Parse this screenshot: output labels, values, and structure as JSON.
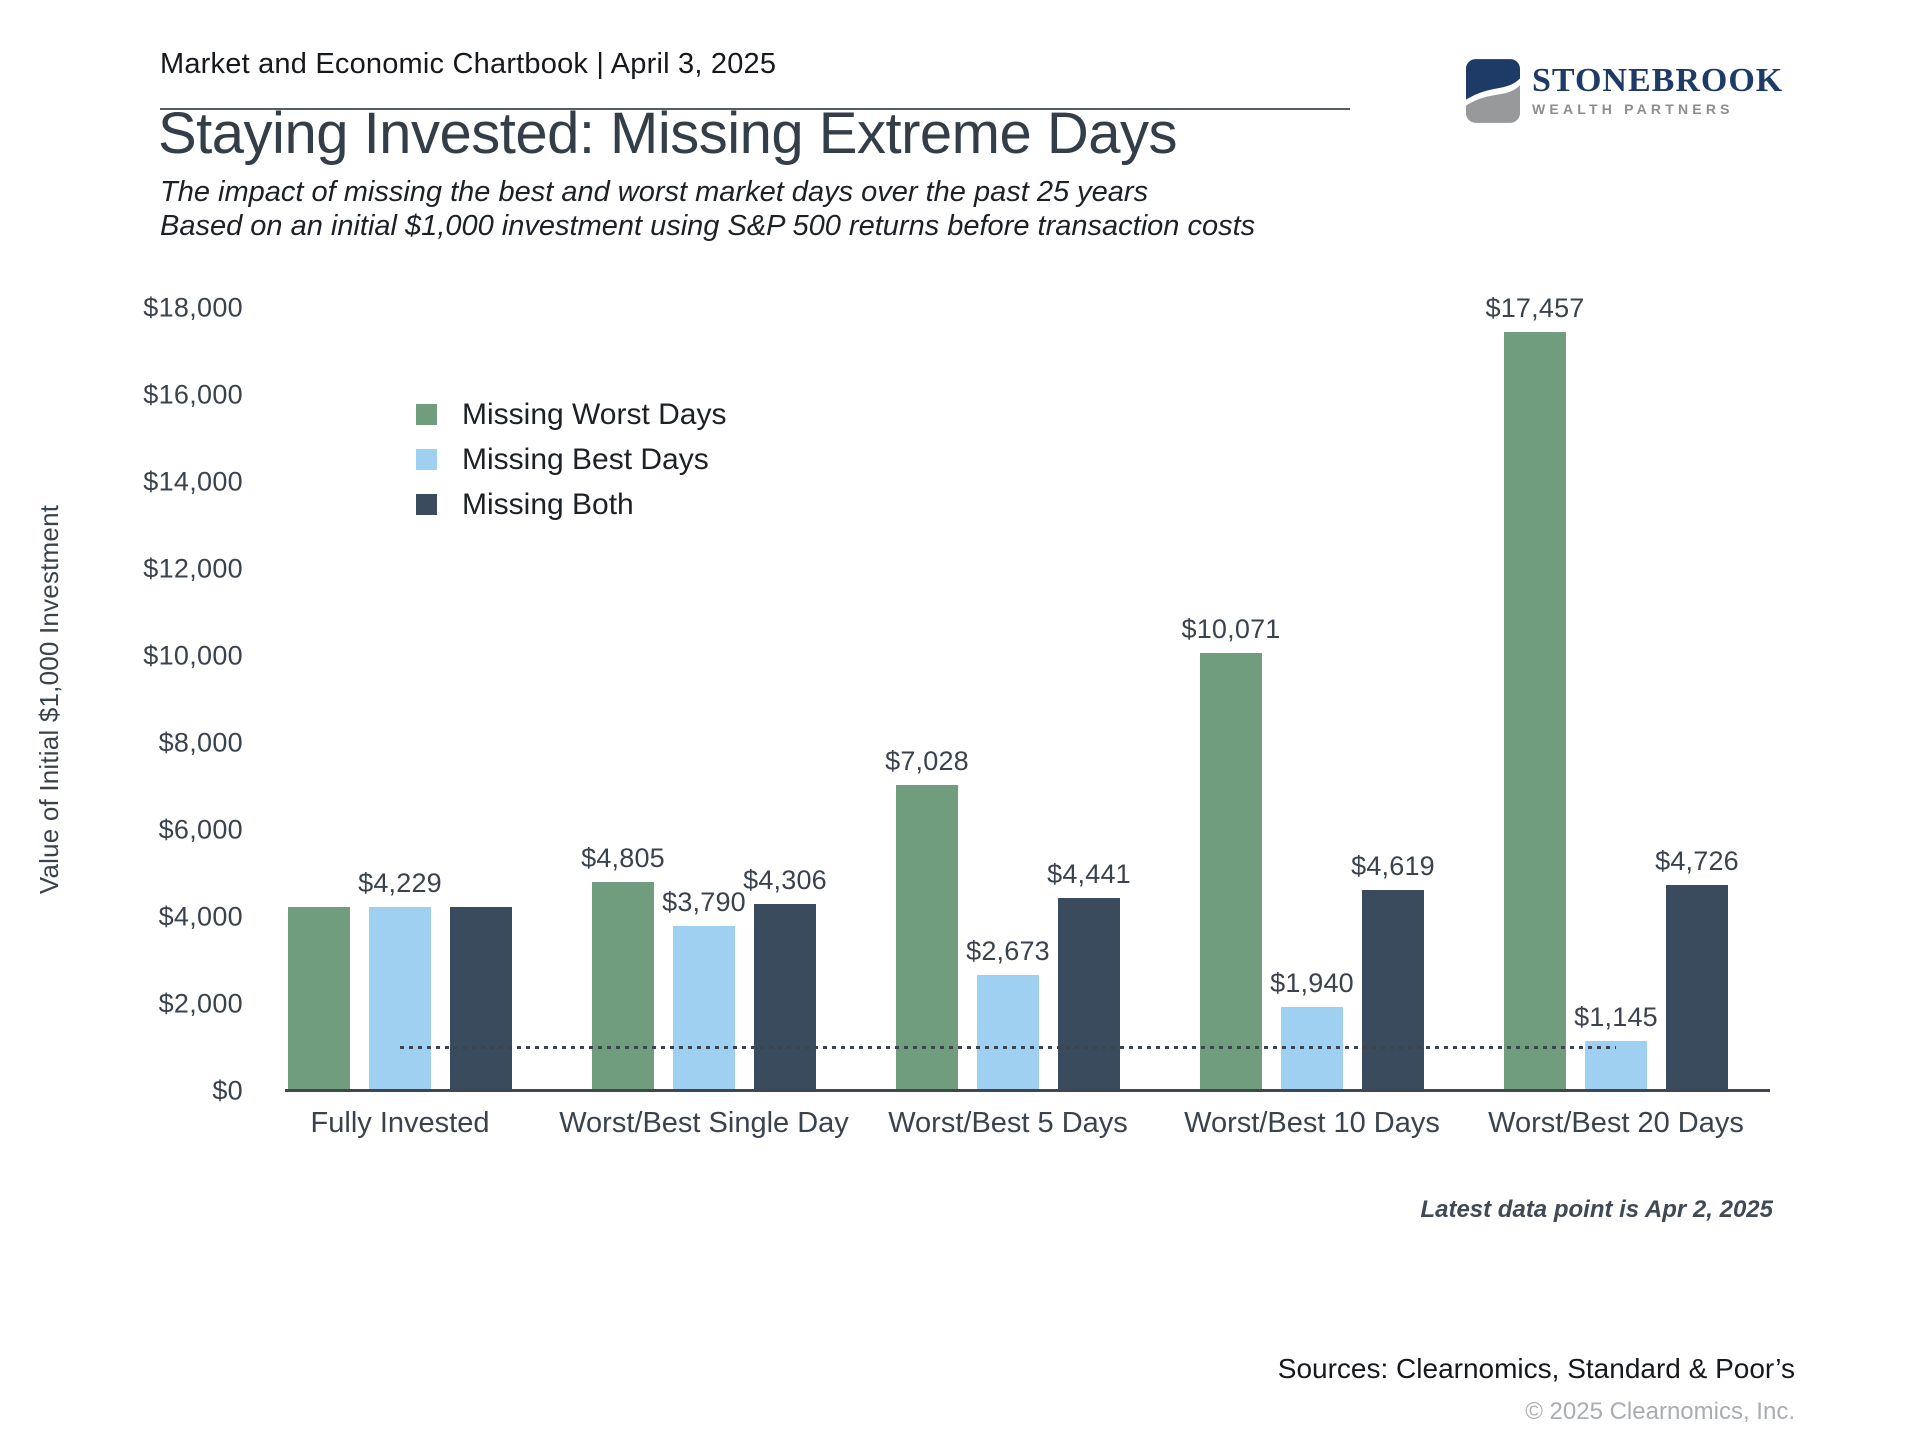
{
  "header": {
    "chartbook_title": "Market and Economic Chartbook | April 3, 2025"
  },
  "logo": {
    "name": "STONEBROOK",
    "tagline": "WEALTH PARTNERS",
    "navy": "#1e3a66",
    "gray": "#98999b"
  },
  "title": "Staying Invested: Missing Extreme Days",
  "subtitle_line1": "The impact of missing the best and worst market days over the past 25 years",
  "subtitle_line2": "Based on an initial $1,000 investment using S&P 500 returns before transaction costs",
  "chart_data": {
    "type": "bar",
    "title": "Staying Invested: Missing Extreme Days",
    "xlabel": "",
    "ylabel": "Value of Initial $1,000 Investment",
    "ylim": [
      0,
      18000
    ],
    "ytick_step": 2000,
    "ytick_labels": [
      "$0",
      "$2,000",
      "$4,000",
      "$6,000",
      "$8,000",
      "$10,000",
      "$12,000",
      "$14,000",
      "$16,000",
      "$18,000"
    ],
    "grid": false,
    "legend_position": "upper-left-inside",
    "categories": [
      "Fully Invested",
      "Worst/Best Single Day",
      "Worst/Best 5 Days",
      "Worst/Best 10 Days",
      "Worst/Best 20 Days"
    ],
    "series": [
      {
        "name": "Missing Worst Days",
        "color": "#6f9d7d",
        "values": [
          4229,
          4805,
          7028,
          10071,
          17457
        ],
        "labels": [
          "",
          "$4,805",
          "$7,028",
          "$10,071",
          "$17,457"
        ]
      },
      {
        "name": "Missing Best Days",
        "color": "#9fcff1",
        "values": [
          4229,
          3790,
          2673,
          1940,
          1145
        ],
        "labels": [
          "$4,229",
          "$3,790",
          "$2,673",
          "$1,940",
          "$1,145"
        ]
      },
      {
        "name": "Missing Both",
        "color": "#3b4b5e",
        "values": [
          4229,
          4306,
          4441,
          4619,
          4726
        ],
        "labels": [
          "",
          "$4,306",
          "$4,441",
          "$4,619",
          "$4,726"
        ]
      }
    ],
    "reference_line": {
      "value": 1000,
      "style": "dotted",
      "color": "#3c454e"
    }
  },
  "footnote": "Latest data point is Apr 2, 2025",
  "sources": "Sources: Clearnomics, Standard & Poor’s",
  "copyright": "© 2025 Clearnomics, Inc."
}
